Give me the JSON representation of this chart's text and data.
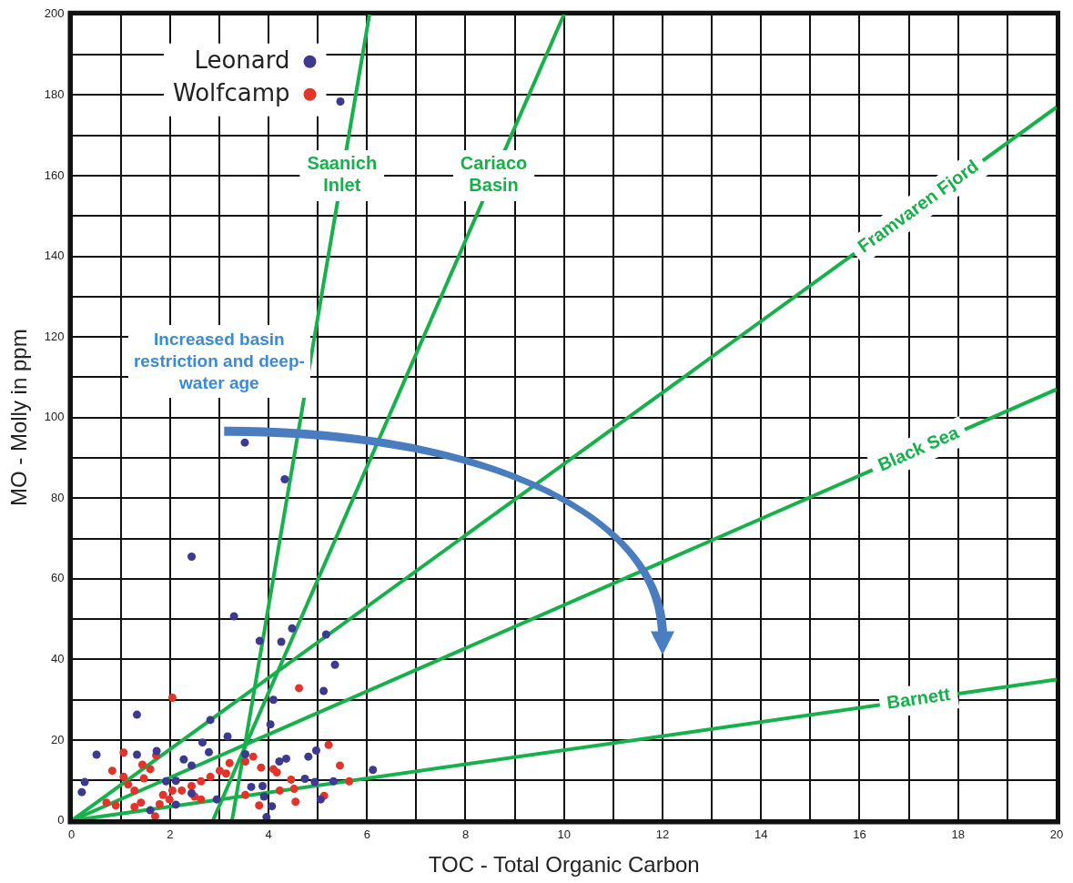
{
  "chart_data": {
    "type": "scatter",
    "xlabel": "TOC - Total Organic Carbon",
    "ylabel": "MO - Molly in ppm",
    "xlim": [
      0,
      20
    ],
    "ylim": [
      0,
      200
    ],
    "xticks": [
      0,
      {
        "value": 1,
        "label": null
      },
      2,
      {
        "value": 3,
        "label": null
      },
      4,
      {
        "value": 5,
        "label": null
      },
      6,
      {
        "value": 7,
        "label": null
      },
      8,
      {
        "value": 9,
        "label": null
      },
      10,
      {
        "value": 11,
        "label": null
      },
      12,
      {
        "value": 13,
        "label": null
      },
      14,
      {
        "value": 15,
        "label": null
      },
      16,
      {
        "value": 17,
        "label": null
      },
      18,
      {
        "value": 19,
        "label": null
      },
      20
    ],
    "yticks": [
      0,
      {
        "value": 10,
        "label": null
      },
      20,
      {
        "value": 30,
        "label": null
      },
      40,
      {
        "value": 50,
        "label": null
      },
      60,
      {
        "value": 70,
        "label": null
      },
      80,
      {
        "value": 90,
        "label": null
      },
      100,
      {
        "value": 110,
        "label": null
      },
      120,
      {
        "value": 130,
        "label": null
      },
      140,
      {
        "value": 150,
        "label": null
      },
      160,
      {
        "value": 170,
        "label": null
      },
      180,
      {
        "value": 190,
        "label": null
      },
      200
    ],
    "grid": true,
    "legend": "top left",
    "marker": "circle",
    "annotations": [
      "Increased basin restriction and deep-water age"
    ],
    "series": [
      {
        "name": "Leonard",
        "color": "#3d3890",
        "x": [
          5.35,
          5.12,
          1.33,
          2.82,
          4.04,
          3.17,
          2.66,
          2.79,
          0.51,
          1.33,
          1.73,
          2.28,
          2.44,
          4.97,
          4.81,
          4.36,
          4.22,
          6.12,
          0.27,
          0.21,
          2.12,
          3.65,
          3.88,
          4.74,
          4.94,
          5.32,
          3.91,
          4.07,
          3.96,
          5.06,
          1.6,
          2.12,
          2.44,
          2.95,
          1.92,
          3.53,
          4.1,
          3.52,
          4.33,
          2.44,
          3.3,
          4.48,
          3.82,
          4.26,
          5.17,
          5.46
        ],
        "values": [
          38.7,
          32.2,
          26.3,
          25,
          23.9,
          20.9,
          19.4,
          17,
          16.4,
          16.4,
          17.3,
          15.2,
          13.7,
          17.4,
          15.9,
          15.4,
          14.7,
          12.6,
          9.6,
          7.1,
          9.9,
          8.4,
          8.6,
          10.4,
          9.6,
          9.8,
          6,
          3.6,
          0.9,
          5.3,
          2.6,
          4,
          6.8,
          5.3,
          9.8,
          16.5,
          30,
          93.8,
          84.7,
          65.5,
          50.7,
          47.7,
          44.6,
          44.4,
          46.2,
          178.4
        ]
      },
      {
        "name": "Wolfcamp",
        "color": "#e1352b",
        "x": [
          2.05,
          4.62,
          5.22,
          5.45,
          1.06,
          1.72,
          0.83,
          1.44,
          1.6,
          1.06,
          3.69,
          3.53,
          3.85,
          4.1,
          4.17,
          3.01,
          3.14,
          2.82,
          2.63,
          2.44,
          2.24,
          2.05,
          1.86,
          1.99,
          1.79,
          1.28,
          1.41,
          1.28,
          0.9,
          0.71,
          2.5,
          2.63,
          3.53,
          3.81,
          4.23,
          4.46,
          4.52,
          4.55,
          5.13,
          5.64,
          1.7,
          3.21,
          1.47,
          1.15
        ],
        "values": [
          30.5,
          32.9,
          18.8,
          13.7,
          16.9,
          16.2,
          12.4,
          13.9,
          12.8,
          10.9,
          15.9,
          14.7,
          13.2,
          12.8,
          12,
          12.4,
          11.7,
          10.9,
          9.8,
          8.6,
          7.5,
          7.5,
          6.4,
          5.3,
          4.1,
          7.5,
          4.5,
          3.4,
          3.8,
          4.5,
          6,
          5.3,
          6.4,
          3.8,
          7.5,
          10.2,
          7.9,
          4.7,
          6.2,
          9.8,
          1.1,
          14.3,
          10.5,
          9
        ]
      },
      {
        "name": "Saanich Inlet",
        "type": "line",
        "marker": "none",
        "color": "#16b14b",
        "x": [
          3.26,
          6.05
        ],
        "values": [
          0,
          200
        ]
      },
      {
        "name": "Cariaco Basin",
        "type": "line",
        "marker": "none",
        "color": "#16b14b",
        "x": [
          2.87,
          10
        ],
        "values": [
          0,
          200
        ]
      },
      {
        "name": "Framvaren Fjord",
        "type": "line",
        "marker": "none",
        "color": "#16b14b",
        "x": [
          0,
          20
        ],
        "values": [
          0,
          177
        ]
      },
      {
        "name": "Black Sea",
        "type": "line",
        "marker": "none",
        "color": "#16b14b",
        "x": [
          0,
          20
        ],
        "values": [
          0,
          107
        ]
      },
      {
        "name": "Barnett",
        "type": "line",
        "marker": "none",
        "color": "#16b14b",
        "x": [
          0,
          20
        ],
        "values": [
          0,
          35
        ]
      }
    ]
  }
}
